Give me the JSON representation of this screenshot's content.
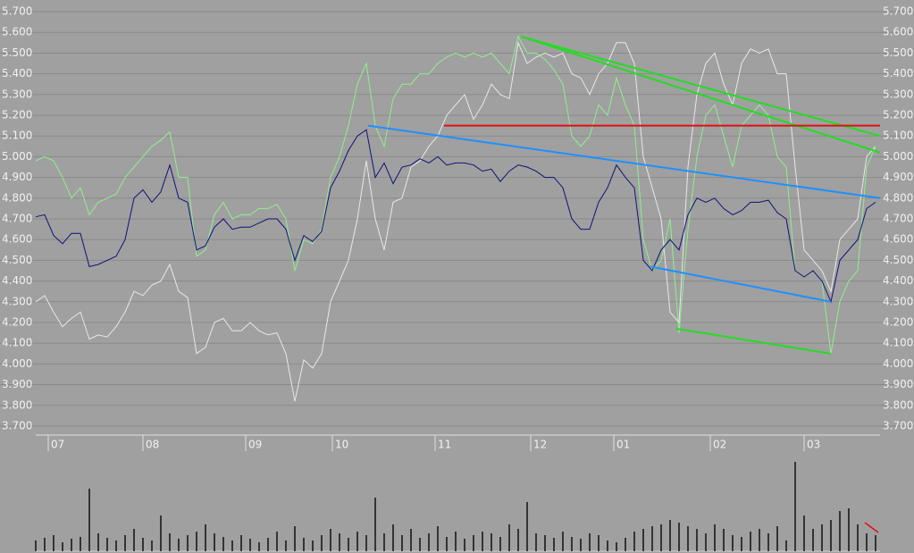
{
  "chart_data": {
    "type": "line",
    "xlim": [
      0,
      94
    ],
    "xticks": [
      {
        "value": 1.7,
        "label": "07"
      },
      {
        "value": 12.3,
        "label": "08"
      },
      {
        "value": 23.8,
        "label": "09"
      },
      {
        "value": 33.5,
        "label": "10"
      },
      {
        "value": 45,
        "label": "11"
      },
      {
        "value": 55.7,
        "label": "12"
      },
      {
        "value": 65,
        "label": "01"
      },
      {
        "value": 75.8,
        "label": "02"
      },
      {
        "value": 86.3,
        "label": "03"
      }
    ],
    "ylim": [
      3.7,
      5.7
    ],
    "yticks": [
      {
        "value": 5.7,
        "label": "5.700"
      },
      {
        "value": 5.6,
        "label": "5.600"
      },
      {
        "value": 5.5,
        "label": "5.500"
      },
      {
        "value": 5.4,
        "label": "5.400"
      },
      {
        "value": 5.3,
        "label": "5.300"
      },
      {
        "value": 5.2,
        "label": "5.200"
      },
      {
        "value": 5.1,
        "label": "5.100"
      },
      {
        "value": 5.0,
        "label": "5.000"
      },
      {
        "value": 4.9,
        "label": "4.900"
      },
      {
        "value": 4.8,
        "label": "4.800"
      },
      {
        "value": 4.7,
        "label": "4.700"
      },
      {
        "value": 4.6,
        "label": "4.600"
      },
      {
        "value": 4.5,
        "label": "4.500"
      },
      {
        "value": 4.4,
        "label": "4.400"
      },
      {
        "value": 4.3,
        "label": "4.300"
      },
      {
        "value": 4.2,
        "label": "4.200"
      },
      {
        "value": 4.1,
        "label": "4.100"
      },
      {
        "value": 4.0,
        "label": "4.000"
      },
      {
        "value": 3.9,
        "label": "3.900"
      },
      {
        "value": 3.8,
        "label": "3.800"
      },
      {
        "value": 3.7,
        "label": "3.700"
      }
    ],
    "grid": true,
    "series": [
      {
        "color": "#e8e8e8",
        "values": [
          4.3,
          4.33,
          4.25,
          4.18,
          4.22,
          4.25,
          4.12,
          4.14,
          4.13,
          4.18,
          4.25,
          4.35,
          4.33,
          4.38,
          4.4,
          4.48,
          4.35,
          4.32,
          4.05,
          4.08,
          4.2,
          4.22,
          4.16,
          4.16,
          4.2,
          4.16,
          4.14,
          4.15,
          4.05,
          3.82,
          4.02,
          3.98,
          4.05,
          4.3,
          4.4,
          4.5,
          4.7,
          4.98,
          4.7,
          4.55,
          4.78,
          4.8,
          4.95,
          4.98,
          5.05,
          5.1,
          5.2,
          5.25,
          5.3,
          5.18,
          5.25,
          5.35,
          5.3,
          5.28,
          5.55,
          5.45,
          5.48,
          5.5,
          5.48,
          5.5,
          5.4,
          5.38,
          5.3,
          5.4,
          5.45,
          5.55,
          5.55,
          5.45,
          5.0,
          4.85,
          4.7,
          4.25,
          4.2,
          4.95,
          5.3,
          5.45,
          5.5,
          5.35,
          5.25,
          5.45,
          5.52,
          5.5,
          5.52,
          5.4,
          5.4,
          4.95,
          4.55,
          4.5,
          4.45,
          4.35,
          4.6,
          4.65,
          4.7,
          5.0,
          5.05
        ]
      },
      {
        "color": "#90ee90",
        "values": [
          4.98,
          5.0,
          4.98,
          4.9,
          4.8,
          4.85,
          4.72,
          4.78,
          4.8,
          4.82,
          4.9,
          4.95,
          5.0,
          5.05,
          5.08,
          5.12,
          4.9,
          4.9,
          4.52,
          4.55,
          4.72,
          4.78,
          4.7,
          4.72,
          4.72,
          4.75,
          4.75,
          4.77,
          4.7,
          4.45,
          4.6,
          4.58,
          4.65,
          4.9,
          5.0,
          5.15,
          5.35,
          5.45,
          5.15,
          5.05,
          5.28,
          5.35,
          5.35,
          5.4,
          5.4,
          5.45,
          5.48,
          5.5,
          5.48,
          5.5,
          5.48,
          5.5,
          5.45,
          5.4,
          5.58,
          5.5,
          5.5,
          5.47,
          5.42,
          5.35,
          5.1,
          5.05,
          5.1,
          5.25,
          5.2,
          5.38,
          5.25,
          5.15,
          4.6,
          4.45,
          4.5,
          4.7,
          4.15,
          4.65,
          5.0,
          5.2,
          5.25,
          5.1,
          4.95,
          5.15,
          5.2,
          5.25,
          5.2,
          5.0,
          4.95,
          4.45,
          4.42,
          4.45,
          4.4,
          4.05,
          4.3,
          4.4,
          4.45,
          4.95,
          5.05
        ]
      },
      {
        "color": "#10107a",
        "values": [
          4.71,
          4.72,
          4.62,
          4.58,
          4.63,
          4.63,
          4.47,
          4.48,
          4.5,
          4.52,
          4.6,
          4.8,
          4.84,
          4.78,
          4.83,
          4.96,
          4.8,
          4.78,
          4.55,
          4.57,
          4.66,
          4.7,
          4.65,
          4.66,
          4.66,
          4.68,
          4.7,
          4.7,
          4.65,
          4.5,
          4.62,
          4.59,
          4.64,
          4.85,
          4.93,
          5.03,
          5.1,
          5.13,
          4.9,
          4.97,
          4.87,
          4.95,
          4.96,
          4.99,
          4.97,
          5.0,
          4.96,
          4.97,
          4.97,
          4.96,
          4.93,
          4.94,
          4.88,
          4.93,
          4.96,
          4.95,
          4.93,
          4.9,
          4.9,
          4.85,
          4.7,
          4.65,
          4.65,
          4.78,
          4.85,
          4.96,
          4.9,
          4.85,
          4.5,
          4.45,
          4.55,
          4.6,
          4.55,
          4.72,
          4.8,
          4.78,
          4.8,
          4.75,
          4.72,
          4.74,
          4.78,
          4.78,
          4.79,
          4.73,
          4.7,
          4.45,
          4.42,
          4.45,
          4.4,
          4.3,
          4.5,
          4.55,
          4.6,
          4.75,
          4.78
        ]
      }
    ],
    "trendlines": [
      {
        "color": "#22dd22",
        "x": [
          54.3,
          94.5
        ],
        "y": [
          5.58,
          5.1
        ]
      },
      {
        "color": "#22dd22",
        "x": [
          54.3,
          94.5
        ],
        "y": [
          5.58,
          5.02
        ]
      },
      {
        "color": "#22dd22",
        "x": [
          71.7,
          89
        ],
        "y": [
          4.17,
          4.05
        ]
      },
      {
        "color": "#1e90ff",
        "x": [
          37.2,
          94.5
        ],
        "y": [
          5.15,
          4.8
        ]
      },
      {
        "color": "#1e90ff",
        "x": [
          68.8,
          89
        ],
        "y": [
          4.47,
          4.3
        ]
      },
      {
        "color": "#dd1111",
        "x": [
          45.7,
          94.5
        ],
        "y": [
          5.15,
          5.15
        ]
      }
    ],
    "volume": {
      "ylim": [
        0,
        100
      ],
      "color": "#111111",
      "values": [
        12,
        15,
        18,
        10,
        14,
        16,
        70,
        20,
        15,
        12,
        18,
        25,
        15,
        12,
        40,
        20,
        14,
        18,
        22,
        30,
        20,
        16,
        12,
        18,
        14,
        10,
        15,
        22,
        12,
        28,
        15,
        12,
        18,
        25,
        20,
        15,
        22,
        18,
        60,
        20,
        30,
        18,
        25,
        15,
        20,
        28,
        16,
        22,
        14,
        18,
        22,
        20,
        16,
        30,
        25,
        55,
        20,
        18,
        15,
        22,
        16,
        14,
        20,
        18,
        12,
        10,
        15,
        22,
        25,
        28,
        30,
        35,
        32,
        28,
        25,
        20,
        30,
        25,
        18,
        16,
        22,
        25,
        20,
        28,
        12,
        100,
        40,
        25,
        30,
        35,
        45,
        48,
        30,
        20,
        18
      ]
    }
  }
}
